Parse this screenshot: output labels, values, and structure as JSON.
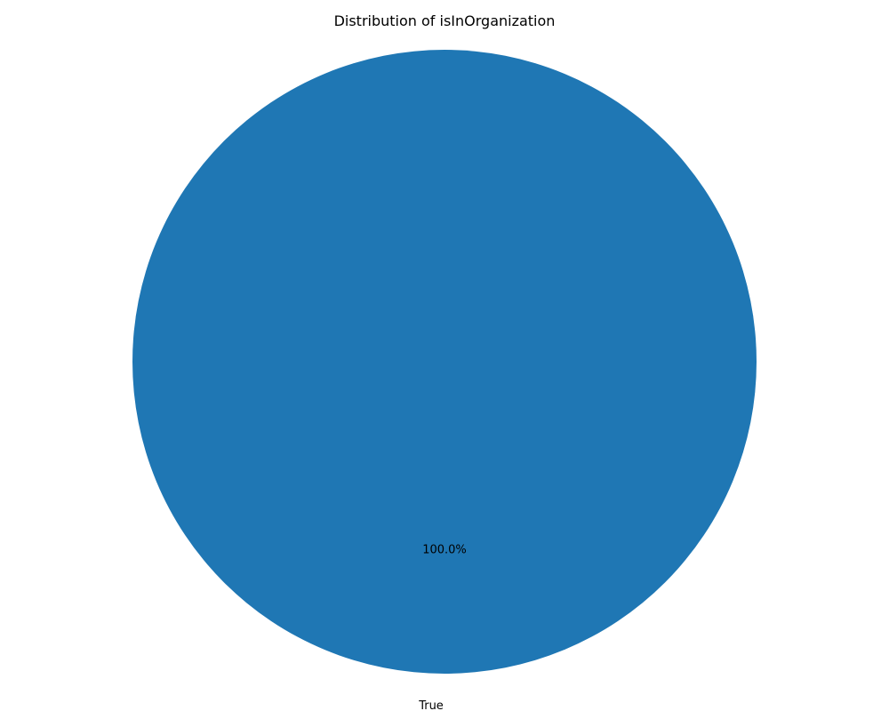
{
  "chart_data": {
    "type": "pie",
    "title": "Distribution of isInOrganization",
    "labels": [
      "True"
    ],
    "values": [
      100
    ],
    "percent_labels": [
      "100.0%"
    ],
    "colors": [
      "#1f77b4"
    ],
    "start_angle_deg": 90,
    "direction": "counterclockwise"
  }
}
